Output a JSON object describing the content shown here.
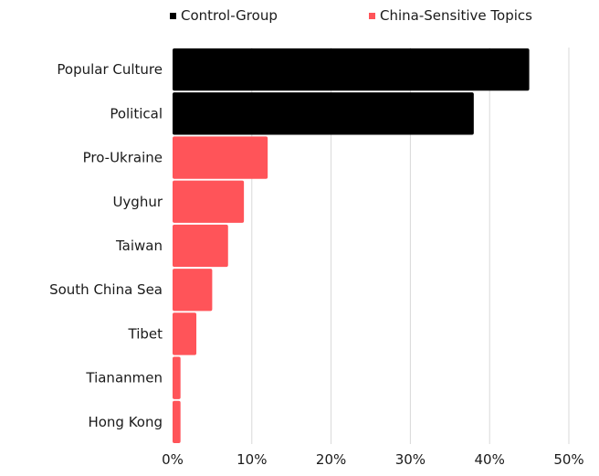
{
  "chart_data": {
    "type": "bar",
    "orientation": "horizontal",
    "categories": [
      "Popular Culture",
      "Political",
      "Pro-Ukraine",
      "Uyghur",
      "Taiwan",
      "South China Sea",
      "Tibet",
      "Tiananmen",
      "Hong Kong"
    ],
    "values": [
      45,
      38,
      12,
      9,
      7,
      5,
      3,
      1,
      1
    ],
    "groups": [
      "Control-Group",
      "Control-Group",
      "China-Sensitive Topics",
      "China-Sensitive Topics",
      "China-Sensitive Topics",
      "China-Sensitive Topics",
      "China-Sensitive Topics",
      "China-Sensitive Topics",
      "China-Sensitive Topics"
    ],
    "series": [
      {
        "name": "Control-Group",
        "color": "#000000"
      },
      {
        "name": "China-Sensitive Topics",
        "color": "#ff5459"
      }
    ],
    "xlim": [
      0,
      50
    ],
    "xticks": [
      0,
      10,
      20,
      30,
      40,
      50
    ],
    "xtick_labels": [
      "0%",
      "10%",
      "20%",
      "30%",
      "40%",
      "50%"
    ],
    "grid": "vertical",
    "legend_position": "top",
    "title": "",
    "xlabel": "",
    "ylabel": ""
  }
}
